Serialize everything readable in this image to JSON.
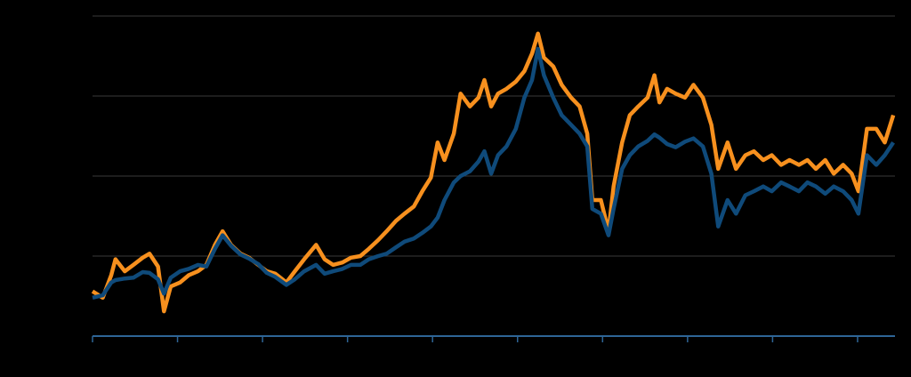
{
  "chart_data": {
    "type": "line",
    "x": [
      0,
      0.12,
      0.22,
      0.27,
      0.38,
      0.48,
      0.59,
      0.67,
      0.77,
      0.84,
      0.92,
      1.03,
      1.13,
      1.24,
      1.34,
      1.44,
      1.53,
      1.63,
      1.74,
      1.84,
      1.95,
      2.05,
      2.15,
      2.28,
      2.38,
      2.49,
      2.63,
      2.73,
      2.83,
      2.94,
      3.04,
      3.15,
      3.25,
      3.36,
      3.46,
      3.57,
      3.67,
      3.78,
      3.88,
      3.98,
      4.06,
      4.14,
      4.25,
      4.33,
      4.44,
      4.54,
      4.61,
      4.69,
      4.77,
      4.87,
      4.98,
      5.08,
      5.17,
      5.24,
      5.31,
      5.42,
      5.52,
      5.63,
      5.73,
      5.82,
      5.88,
      5.98,
      6.07,
      6.13,
      6.23,
      6.32,
      6.42,
      6.53,
      6.61,
      6.67,
      6.76,
      6.86,
      6.97,
      7.07,
      7.18,
      7.28,
      7.36,
      7.47,
      7.57,
      7.68,
      7.78,
      7.89,
      7.99,
      8.1,
      8.2,
      8.31,
      8.41,
      8.51,
      8.62,
      8.72,
      8.83,
      8.93,
      9.01,
      9.11,
      9.22,
      9.32,
      9.42
    ],
    "series": [
      {
        "color": "#f7901e",
        "values": [
          0.56,
          0.48,
          0.76,
          0.96,
          0.81,
          0.89,
          0.98,
          1.03,
          0.87,
          0.31,
          0.62,
          0.67,
          0.76,
          0.81,
          0.89,
          1.14,
          1.31,
          1.14,
          1.03,
          0.98,
          0.89,
          0.81,
          0.78,
          0.67,
          0.81,
          0.96,
          1.14,
          0.96,
          0.89,
          0.92,
          0.98,
          1.0,
          1.09,
          1.2,
          1.31,
          1.44,
          1.53,
          1.62,
          1.81,
          1.98,
          2.42,
          2.2,
          2.53,
          3.03,
          2.87,
          2.98,
          3.2,
          2.87,
          3.03,
          3.09,
          3.18,
          3.31,
          3.53,
          3.78,
          3.48,
          3.37,
          3.14,
          2.98,
          2.87,
          2.53,
          1.7,
          1.7,
          1.31,
          1.87,
          2.42,
          2.76,
          2.87,
          2.98,
          3.26,
          2.92,
          3.09,
          3.03,
          2.98,
          3.14,
          2.98,
          2.64,
          2.09,
          2.42,
          2.09,
          2.26,
          2.31,
          2.2,
          2.26,
          2.14,
          2.2,
          2.14,
          2.2,
          2.09,
          2.2,
          2.03,
          2.14,
          2.03,
          1.81,
          2.59,
          2.59,
          2.42,
          2.76
        ]
      },
      {
        "color": "#0f4a7a",
        "values": [
          0.48,
          0.51,
          0.67,
          0.7,
          0.72,
          0.73,
          0.8,
          0.79,
          0.71,
          0.53,
          0.73,
          0.81,
          0.84,
          0.89,
          0.87,
          1.09,
          1.26,
          1.13,
          1.02,
          0.97,
          0.9,
          0.79,
          0.74,
          0.64,
          0.71,
          0.81,
          0.89,
          0.78,
          0.81,
          0.84,
          0.89,
          0.89,
          0.96,
          1.0,
          1.03,
          1.11,
          1.18,
          1.22,
          1.29,
          1.37,
          1.48,
          1.7,
          1.92,
          2.0,
          2.06,
          2.18,
          2.31,
          2.03,
          2.26,
          2.37,
          2.59,
          2.98,
          3.2,
          3.59,
          3.26,
          2.98,
          2.76,
          2.64,
          2.53,
          2.37,
          1.59,
          1.53,
          1.26,
          1.59,
          2.09,
          2.26,
          2.37,
          2.44,
          2.52,
          2.48,
          2.4,
          2.36,
          2.43,
          2.47,
          2.37,
          2.03,
          1.37,
          1.7,
          1.53,
          1.76,
          1.81,
          1.87,
          1.81,
          1.92,
          1.87,
          1.81,
          1.92,
          1.87,
          1.78,
          1.87,
          1.81,
          1.7,
          1.53,
          2.26,
          2.14,
          2.26,
          2.42
        ]
      }
    ],
    "xlim": [
      0,
      9.44
    ],
    "xticks": [
      0,
      1,
      2,
      3,
      4,
      5,
      6,
      7,
      8,
      9
    ],
    "ylim": [
      0,
      4
    ],
    "yticks": [
      1,
      2,
      3,
      4
    ],
    "grid": true
  }
}
